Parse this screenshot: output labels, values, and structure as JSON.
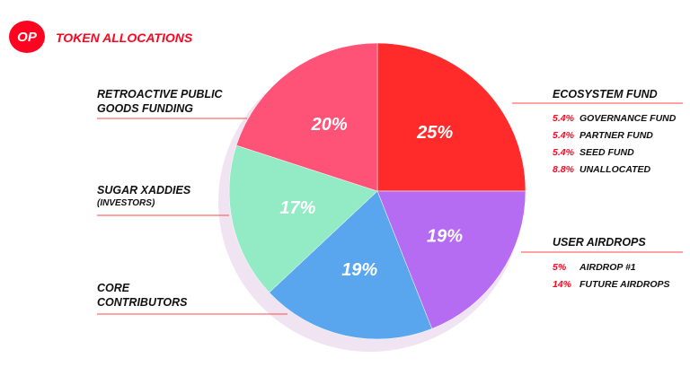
{
  "chart_data": {
    "type": "pie",
    "logo": "OP",
    "title": "TOKEN ALLOCATIONS",
    "categories": [
      "ECOSYSTEM FUND",
      "USER AIRDROPS",
      "CORE CONTRIBUTORS",
      "SUGAR XADDIES",
      "RETROACTIVE PUBLIC GOODS FUNDING"
    ],
    "category_notes": [
      null,
      null,
      null,
      "(INVESTORS)",
      null
    ],
    "values": [
      25,
      19,
      19,
      17,
      20
    ],
    "value_labels": [
      "25%",
      "19%",
      "19%",
      "17%",
      "20%"
    ],
    "colors": [
      "#ff2a2a",
      "#b66cf2",
      "#5aa6ee",
      "#93ebc6",
      "#ff5277"
    ],
    "breakdowns": [
      [
        {
          "label": "GOVERNANCE FUND",
          "value": 5.4,
          "value_label": "5.4%"
        },
        {
          "label": "PARTNER FUND",
          "value": 5.4,
          "value_label": "5.4%"
        },
        {
          "label": "SEED FUND",
          "value": 5.4,
          "value_label": "5.4%"
        },
        {
          "label": "UNALLOCATED",
          "value": 8.8,
          "value_label": "8.8%"
        }
      ],
      [
        {
          "label": "AIRDROP #1",
          "value": 5,
          "value_label": "5%"
        },
        {
          "label": "FUTURE AIRDROPS",
          "value": 14,
          "value_label": "14%"
        }
      ],
      null,
      null,
      null
    ]
  }
}
